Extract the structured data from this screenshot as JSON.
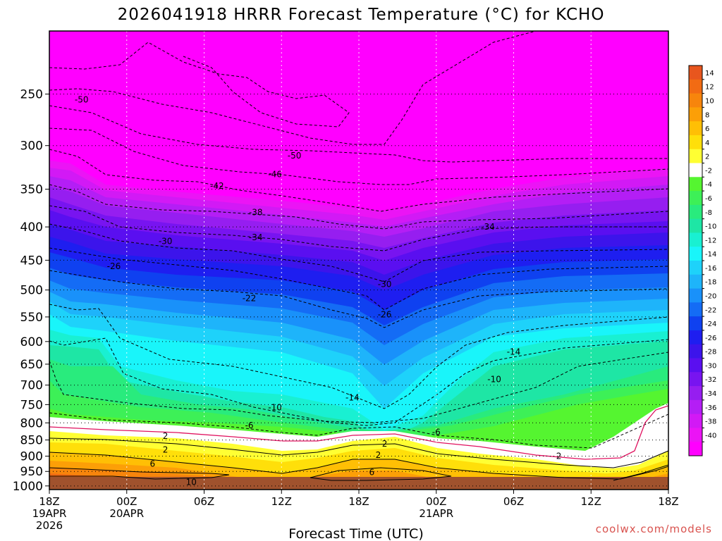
{
  "chart_data": {
    "type": "heatmap",
    "title": "2026041918 HRRR Forecast Temperature (°C) for KCHO",
    "xlabel": "Forecast Time (UTC)",
    "credit": "coolwx.com/models",
    "x_ticks": [
      {
        "hours": 0,
        "lines": [
          "18Z",
          "19APR",
          "2026"
        ]
      },
      {
        "hours": 6,
        "lines": [
          "00Z",
          "20APR"
        ]
      },
      {
        "hours": 12,
        "lines": [
          "06Z"
        ]
      },
      {
        "hours": 18,
        "lines": [
          "12Z"
        ]
      },
      {
        "hours": 24,
        "lines": [
          "18Z"
        ]
      },
      {
        "hours": 30,
        "lines": [
          "00Z",
          "21APR"
        ]
      },
      {
        "hours": 36,
        "lines": [
          "06Z"
        ]
      },
      {
        "hours": 42,
        "lines": [
          "12Z"
        ]
      },
      {
        "hours": 48,
        "lines": [
          "18Z"
        ]
      }
    ],
    "xlim": [
      0,
      48
    ],
    "y_ticks": [
      "250",
      "300",
      "350",
      "400",
      "450",
      "500",
      "550",
      "600",
      "650",
      "700",
      "750",
      "800",
      "850",
      "900",
      "950",
      "1000"
    ],
    "ylim": [
      200,
      1013
    ],
    "y_scale": "log",
    "grid": true,
    "colorbar": {
      "labels": [
        "14",
        "12",
        "10",
        "8",
        "6",
        "4",
        "2",
        "-2",
        "-4",
        "-6",
        "-8",
        "-10",
        "-12",
        "-14",
        "-16",
        "-18",
        "-20",
        "-22",
        "-24",
        "-26",
        "-28",
        "-30",
        "-32",
        "-34",
        "-36",
        "-38",
        "-40"
      ],
      "colors": [
        "#e8561e",
        "#f26b13",
        "#f7850c",
        "#fc9f07",
        "#ffbf05",
        "#ffdf0a",
        "#ffff33",
        "#ffffff",
        "#55f530",
        "#3df057",
        "#29eb7d",
        "#1ee6a5",
        "#19f0d2",
        "#19f5fa",
        "#1ed2fa",
        "#1eb4fa",
        "#1991fa",
        "#146cf5",
        "#0f41f0",
        "#1e1ef0",
        "#3c14eb",
        "#5a0ff0",
        "#7814f0",
        "#961ef0",
        "#b41ef5",
        "#d219f5",
        "#eb14f5",
        "#ff00ff"
      ]
    },
    "contour_labels": [
      {
        "hours": 2.5,
        "pressure": 255,
        "label": "-50"
      },
      {
        "hours": 19.0,
        "pressure": 311,
        "label": "-50"
      },
      {
        "hours": 17.5,
        "pressure": 332,
        "label": "-46"
      },
      {
        "hours": 13.0,
        "pressure": 346,
        "label": "-42"
      },
      {
        "hours": 16.0,
        "pressure": 380,
        "label": "-38"
      },
      {
        "hours": 16.0,
        "pressure": 415,
        "label": "-34"
      },
      {
        "hours": 34.0,
        "pressure": 400,
        "label": "-34"
      },
      {
        "hours": 9.0,
        "pressure": 421,
        "label": "-30"
      },
      {
        "hours": 26.0,
        "pressure": 490,
        "label": "-30"
      },
      {
        "hours": 5.0,
        "pressure": 460,
        "label": "-26"
      },
      {
        "hours": 26.0,
        "pressure": 545,
        "label": "-26"
      },
      {
        "hours": 15.5,
        "pressure": 515,
        "label": "-22"
      },
      {
        "hours": 36.0,
        "pressure": 622,
        "label": "-14"
      },
      {
        "hours": 23.5,
        "pressure": 732,
        "label": "-14"
      },
      {
        "hours": 34.5,
        "pressure": 686,
        "label": "-10"
      },
      {
        "hours": 17.5,
        "pressure": 758,
        "label": "-10"
      },
      {
        "hours": 15.5,
        "pressure": 807,
        "label": "-6"
      },
      {
        "hours": 30.0,
        "pressure": 827,
        "label": "-6"
      },
      {
        "hours": 9.0,
        "pressure": 838,
        "label": "2"
      },
      {
        "hours": 26.0,
        "pressure": 861,
        "label": "2"
      },
      {
        "hours": 9.0,
        "pressure": 880,
        "label": "2"
      },
      {
        "hours": 25.5,
        "pressure": 897,
        "label": "2"
      },
      {
        "hours": 39.5,
        "pressure": 900,
        "label": "2"
      },
      {
        "hours": 8.0,
        "pressure": 925,
        "label": "6"
      },
      {
        "hours": 25.0,
        "pressure": 953,
        "label": "6"
      },
      {
        "hours": 11.0,
        "pressure": 987,
        "label": "10"
      }
    ]
  }
}
